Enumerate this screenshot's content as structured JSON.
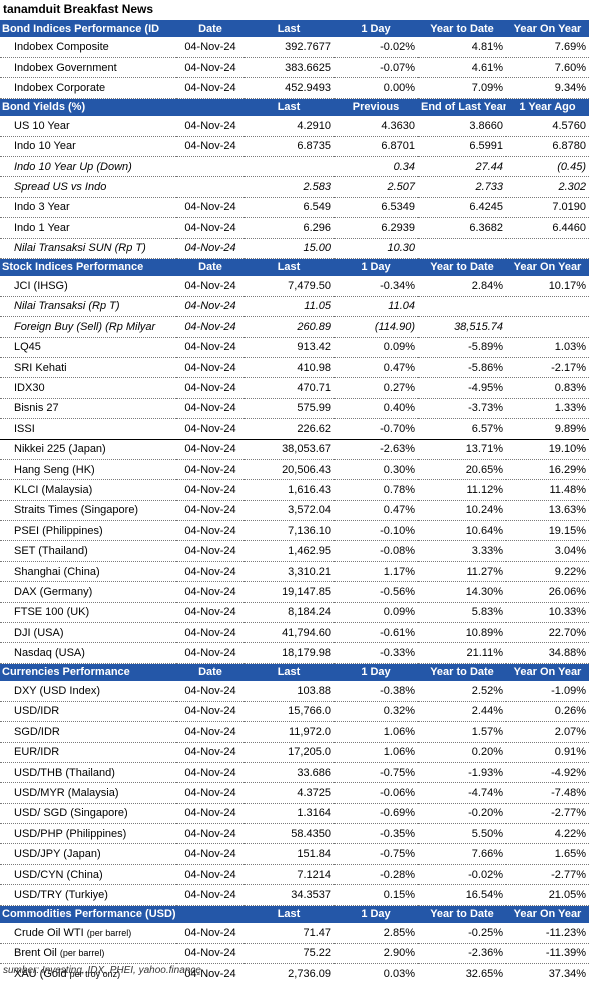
{
  "title": "tanamduit Breakfast News",
  "source": "sumber: Investing, IDX, PHEI, yahoo.finance",
  "sections": [
    {
      "name": "bond-indices",
      "headers": [
        "Bond Indices Performance (ID",
        "Date",
        "Last",
        "1 Day",
        "Year to Date",
        "Year On Year"
      ],
      "align": [
        "sec",
        "c",
        "c",
        "c",
        "c",
        "c"
      ],
      "rows": [
        {
          "cells": [
            "Indobex Composite",
            "04-Nov-24",
            "392.7677",
            "-0.02%",
            "4.81%",
            "7.69%"
          ]
        },
        {
          "cells": [
            "Indobex Government",
            "04-Nov-24",
            "383.6625",
            "-0.07%",
            "4.61%",
            "7.60%"
          ]
        },
        {
          "cells": [
            "Indobex Corporate",
            "04-Nov-24",
            "452.9493",
            "0.00%",
            "7.09%",
            "9.34%"
          ]
        }
      ]
    },
    {
      "name": "bond-yields",
      "headers": [
        "Bond Yields (%)",
        "",
        "Last",
        "Previous",
        "End of Last Year",
        "1 Year Ago"
      ],
      "align": [
        "sec",
        "c",
        "c",
        "c",
        "c",
        "c"
      ],
      "rows": [
        {
          "cells": [
            "US 10 Year",
            "04-Nov-24",
            "4.2910",
            "4.3630",
            "3.8660",
            "4.5760"
          ]
        },
        {
          "cells": [
            "Indo 10 Year",
            "04-Nov-24",
            "6.8735",
            "6.8701",
            "6.5991",
            "6.8780"
          ]
        },
        {
          "cells": [
            "Indo 10 Year Up (Down)",
            "",
            "",
            "0.34",
            "27.44",
            "(0.45)"
          ],
          "italic": true
        },
        {
          "cells": [
            "Spread US vs Indo",
            "",
            "2.583",
            "2.507",
            "2.733",
            "2.302"
          ],
          "italic": true
        },
        {
          "cells": [
            "Indo 3 Year",
            "04-Nov-24",
            "6.549",
            "6.5349",
            "6.4245",
            "7.0190"
          ]
        },
        {
          "cells": [
            "Indo 1 Year",
            "04-Nov-24",
            "6.296",
            "6.2939",
            "6.3682",
            "6.4460"
          ]
        },
        {
          "cells": [
            "Nilai Transaksi SUN (Rp T)",
            "04-Nov-24",
            "15.00",
            "10.30",
            "",
            ""
          ],
          "italic": true
        }
      ]
    },
    {
      "name": "stock-indices",
      "headers": [
        "Stock Indices Performance",
        "Date",
        "Last",
        "1 Day",
        "Year to Date",
        "Year On Year"
      ],
      "align": [
        "sec",
        "c",
        "c",
        "c",
        "c",
        "c"
      ],
      "rows": [
        {
          "cells": [
            "JCI (IHSG)",
            "04-Nov-24",
            "7,479.50",
            "-0.34%",
            "2.84%",
            "10.17%"
          ]
        },
        {
          "cells": [
            "Nilai Transaksi (Rp T)",
            "04-Nov-24",
            "11.05",
            "11.04",
            "",
            ""
          ],
          "italic": true
        },
        {
          "cells": [
            "Foreign Buy (Sell) (Rp Milyar",
            "04-Nov-24",
            "260.89",
            "(114.90)",
            "38,515.74",
            ""
          ],
          "italic": true
        },
        {
          "cells": [
            "LQ45",
            "04-Nov-24",
            "913.42",
            "0.09%",
            "-5.89%",
            "1.03%"
          ]
        },
        {
          "cells": [
            "SRI Kehati",
            "04-Nov-24",
            "410.98",
            "0.47%",
            "-5.86%",
            "-2.17%"
          ]
        },
        {
          "cells": [
            "IDX30",
            "04-Nov-24",
            "470.71",
            "0.27%",
            "-4.95%",
            "0.83%"
          ]
        },
        {
          "cells": [
            "Bisnis 27",
            "04-Nov-24",
            "575.99",
            "0.40%",
            "-3.73%",
            "1.33%"
          ]
        },
        {
          "cells": [
            "ISSI",
            "04-Nov-24",
            "226.62",
            "-0.70%",
            "6.57%",
            "9.89%"
          ],
          "solid": true
        },
        {
          "cells": [
            "Nikkei 225 (Japan)",
            "04-Nov-24",
            "38,053.67",
            "-2.63%",
            "13.71%",
            "19.10%"
          ]
        },
        {
          "cells": [
            "Hang Seng (HK)",
            "04-Nov-24",
            "20,506.43",
            "0.30%",
            "20.65%",
            "16.29%"
          ]
        },
        {
          "cells": [
            "KLCI (Malaysia)",
            "04-Nov-24",
            "1,616.43",
            "0.78%",
            "11.12%",
            "11.48%"
          ]
        },
        {
          "cells": [
            "Straits Times (Singapore)",
            "04-Nov-24",
            "3,572.04",
            "0.47%",
            "10.24%",
            "13.63%"
          ]
        },
        {
          "cells": [
            "PSEI (Philippines)",
            "04-Nov-24",
            "7,136.10",
            "-0.10%",
            "10.64%",
            "19.15%"
          ]
        },
        {
          "cells": [
            "SET (Thailand)",
            "04-Nov-24",
            "1,462.95",
            "-0.08%",
            "3.33%",
            "3.04%"
          ]
        },
        {
          "cells": [
            "Shanghai (China)",
            "04-Nov-24",
            "3,310.21",
            "1.17%",
            "11.27%",
            "9.22%"
          ]
        },
        {
          "cells": [
            "DAX (Germany)",
            "04-Nov-24",
            "19,147.85",
            "-0.56%",
            "14.30%",
            "26.06%"
          ]
        },
        {
          "cells": [
            "FTSE 100 (UK)",
            "04-Nov-24",
            "8,184.24",
            "0.09%",
            "5.83%",
            "10.33%"
          ]
        },
        {
          "cells": [
            "DJI (USA)",
            "04-Nov-24",
            "41,794.60",
            "-0.61%",
            "10.89%",
            "22.70%"
          ]
        },
        {
          "cells": [
            "Nasdaq (USA)",
            "04-Nov-24",
            "18,179.98",
            "-0.33%",
            "21.11%",
            "34.88%"
          ]
        }
      ]
    },
    {
      "name": "currencies",
      "headers": [
        "Currencies Performance",
        "Date",
        "Last",
        "1 Day",
        "Year to Date",
        "Year On Year"
      ],
      "align": [
        "sec",
        "c",
        "c",
        "c",
        "c",
        "c"
      ],
      "rows": [
        {
          "cells": [
            "DXY (USD Index)",
            "04-Nov-24",
            "103.88",
            "-0.38%",
            "2.52%",
            "-1.09%"
          ]
        },
        {
          "cells": [
            "USD/IDR",
            "04-Nov-24",
            "15,766.0",
            "0.32%",
            "2.44%",
            "0.26%"
          ]
        },
        {
          "cells": [
            "SGD/IDR",
            "04-Nov-24",
            "11,972.0",
            "1.06%",
            "1.57%",
            "2.07%"
          ]
        },
        {
          "cells": [
            "EUR/IDR",
            "04-Nov-24",
            "17,205.0",
            "1.06%",
            "0.20%",
            "0.91%"
          ]
        },
        {
          "cells": [
            "USD/THB (Thailand)",
            "04-Nov-24",
            "33.686",
            "-0.75%",
            "-1.93%",
            "-4.92%"
          ]
        },
        {
          "cells": [
            "USD/MYR (Malaysia)",
            "04-Nov-24",
            "4.3725",
            "-0.06%",
            "-4.74%",
            "-7.48%"
          ]
        },
        {
          "cells": [
            "USD/ SGD (Singapore)",
            "04-Nov-24",
            "1.3164",
            "-0.69%",
            "-0.20%",
            "-2.77%"
          ]
        },
        {
          "cells": [
            "USD/PHP (Philippines)",
            "04-Nov-24",
            "58.4350",
            "-0.35%",
            "5.50%",
            "4.22%"
          ]
        },
        {
          "cells": [
            "USD/JPY (Japan)",
            "04-Nov-24",
            "151.84",
            "-0.75%",
            "7.66%",
            "1.65%"
          ]
        },
        {
          "cells": [
            "USD/CYN (China)",
            "04-Nov-24",
            "7.1214",
            "-0.28%",
            "-0.02%",
            "-2.77%"
          ]
        },
        {
          "cells": [
            "USD/TRY (Turkiye)",
            "04-Nov-24",
            "34.3537",
            "0.15%",
            "16.54%",
            "21.05%"
          ]
        }
      ]
    },
    {
      "name": "commodities",
      "headers": [
        "Commodities Performance (USD)",
        "",
        "Last",
        "1 Day",
        "Year to Date",
        "Year On Year"
      ],
      "align": [
        "sec",
        "c",
        "c",
        "c",
        "c",
        "c"
      ],
      "rows": [
        {
          "cells": [
            "Crude Oil WTI",
            "04-Nov-24",
            "71.47",
            "2.85%",
            "-0.25%",
            "-11.23%"
          ],
          "note": "(per barrel)"
        },
        {
          "cells": [
            "Brent Oil",
            "04-Nov-24",
            "75.22",
            "2.90%",
            "-2.36%",
            "-11.39%"
          ],
          "note": "(per barrel)"
        },
        {
          "cells": [
            "XAU (Gold",
            "04-Nov-24",
            "2,736.09",
            "0.03%",
            "32.65%",
            "37.34%"
          ],
          "note": "per troy onz)"
        }
      ]
    }
  ]
}
